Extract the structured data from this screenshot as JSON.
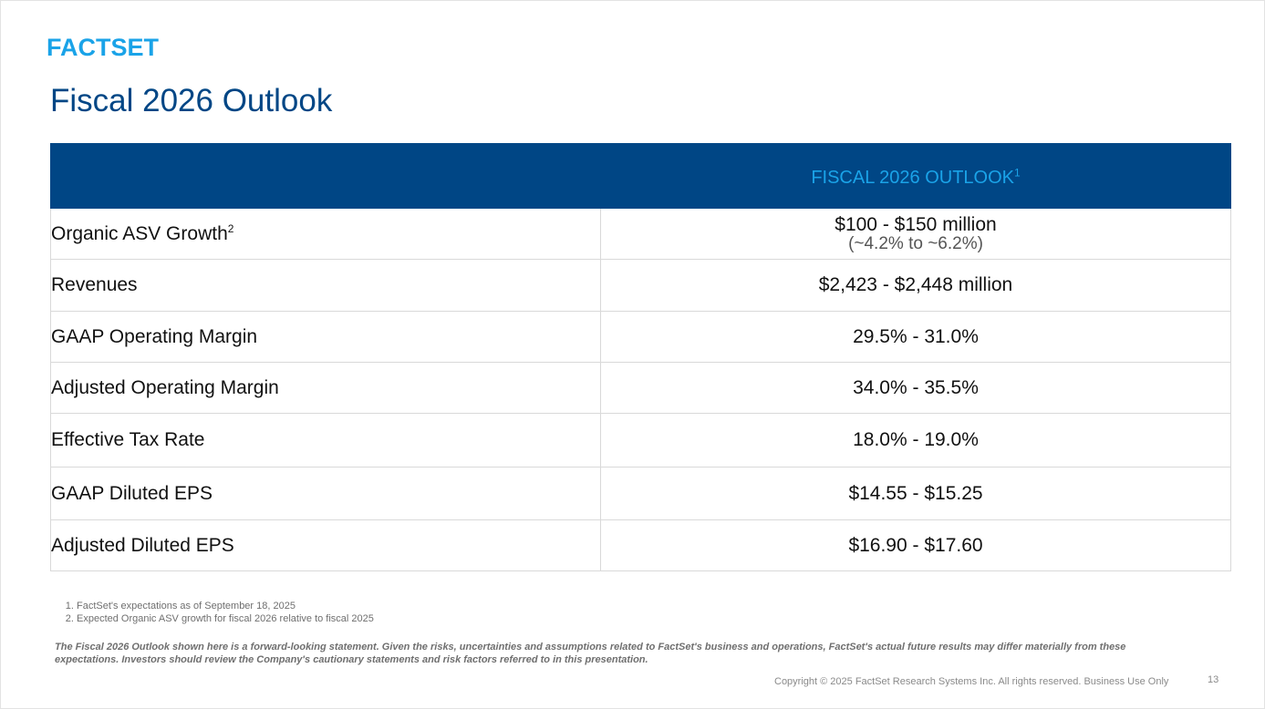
{
  "logo": {
    "text": "FACTSET",
    "color": "#1aa3e8"
  },
  "title": "Fiscal 2026 Outlook",
  "table": {
    "header": {
      "left": "",
      "right": "FISCAL 2026 OUTLOOK",
      "right_sup": "1"
    },
    "rows": [
      {
        "label": "Organic ASV Growth",
        "label_sup": "2",
        "value": "$100 - $150 million",
        "value_sub": "(~4.2% to ~6.2%)"
      },
      {
        "label": "Revenues",
        "value": "$2,423 - $2,448 million"
      },
      {
        "label": "GAAP Operating Margin",
        "value": "29.5% - 31.0%"
      },
      {
        "label": "Adjusted Operating Margin",
        "value": "34.0% - 35.5%"
      },
      {
        "label": "Effective Tax Rate",
        "value": "18.0% - 19.0%"
      },
      {
        "label": "GAAP Diluted EPS",
        "value": "$14.55 - $15.25"
      },
      {
        "label": "Adjusted Diluted EPS",
        "value": "$16.90 - $17.60"
      }
    ]
  },
  "footnotes": [
    "FactSet's expectations as of September 18, 2025",
    "Expected Organic ASV growth for fiscal 2026 relative to fiscal 2025"
  ],
  "disclaimer": "The Fiscal 2026 Outlook shown here is a forward-looking statement. Given the risks, uncertainties and assumptions related to FactSet's business and operations, FactSet's actual future results may differ materially from these expectations. Investors should review the Company's cautionary statements and risk factors referred to in this presentation.",
  "copyright": "Copyright © 2025 FactSet Research Systems Inc. All rights reserved. Business Use Only",
  "page_number": "13",
  "colors": {
    "brand_dark": "#004685",
    "brand_light": "#1aa3e8"
  }
}
